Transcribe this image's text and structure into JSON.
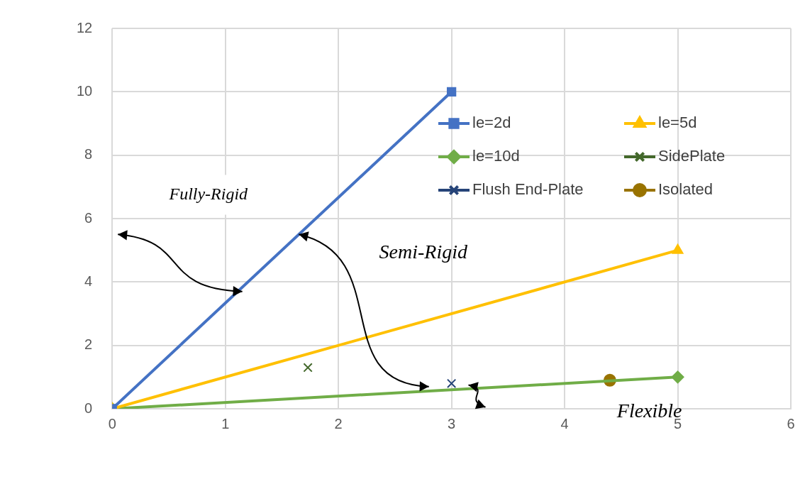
{
  "chart_data": {
    "type": "scatter",
    "series": [
      {
        "name": "le=2d",
        "type": "line",
        "color": "#4472c4",
        "marker": "square",
        "x": [
          0,
          3
        ],
        "values": [
          0,
          10
        ]
      },
      {
        "name": "le=5d",
        "type": "line",
        "color": "#ffc000",
        "marker": "triangle",
        "x": [
          0,
          5
        ],
        "values": [
          0,
          5
        ]
      },
      {
        "name": "le=10d",
        "type": "line",
        "color": "#70ad47",
        "marker": "diamond",
        "x": [
          0,
          5
        ],
        "values": [
          0,
          1
        ]
      },
      {
        "name": "SidePlate",
        "type": "scatter",
        "color": "#43682b",
        "marker": "cross",
        "x": [
          1.73
        ],
        "values": [
          1.3
        ]
      },
      {
        "name": "Flush End-Plate",
        "type": "scatter",
        "color": "#264478",
        "marker": "cross",
        "x": [
          3
        ],
        "values": [
          0.8
        ]
      },
      {
        "name": "Isolated",
        "type": "scatter",
        "color": "#997300",
        "marker": "circle",
        "x": [
          4.4
        ],
        "values": [
          0.9
        ]
      }
    ],
    "xlim": [
      0,
      6
    ],
    "xticks": [
      0,
      1,
      2,
      3,
      4,
      5,
      6
    ],
    "ylim": [
      0,
      12
    ],
    "yticks": [
      0,
      2,
      4,
      6,
      8,
      10,
      12
    ],
    "grid": true,
    "legend": "top right",
    "annotations": [
      "Fully-Rigid",
      "Semi-Rigid",
      "Flexible"
    ]
  }
}
